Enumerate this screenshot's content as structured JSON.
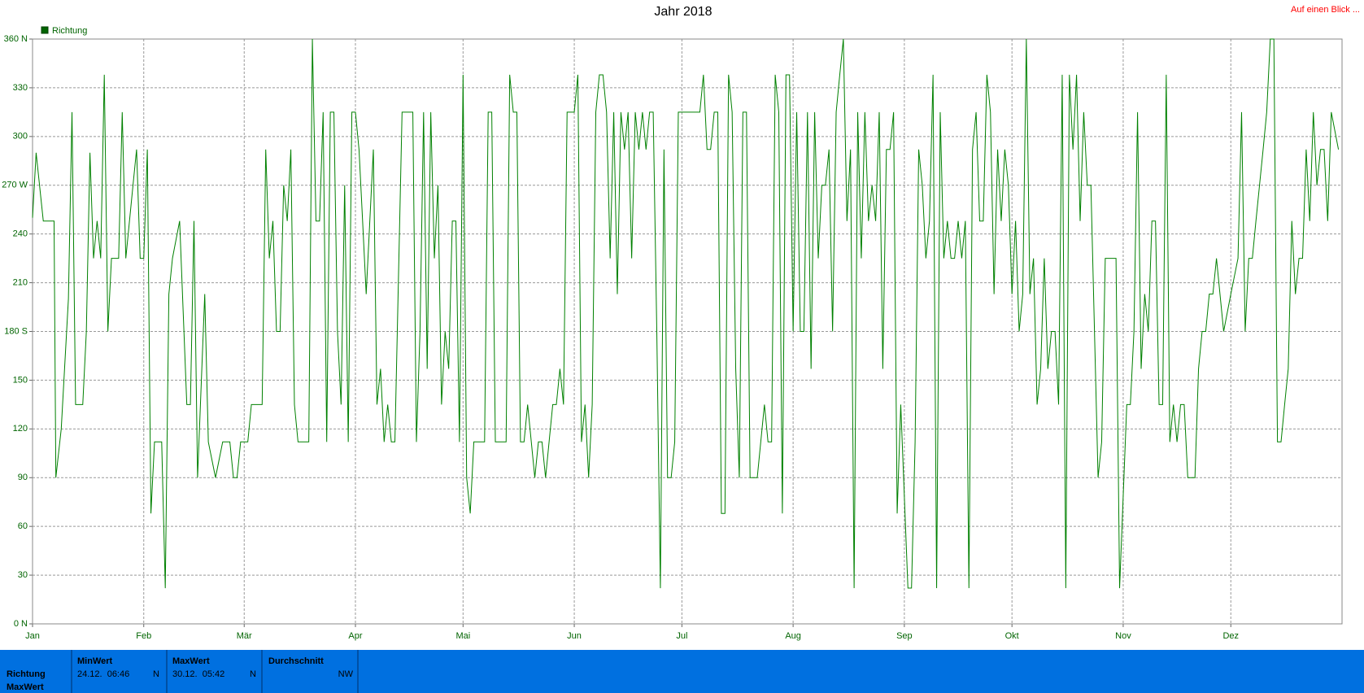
{
  "chart_data": {
    "type": "line",
    "title": "Jahr 2018",
    "link": "Auf einen Blick ...",
    "xlim": [
      0,
      365
    ],
    "xticks": [
      {
        "value": 0,
        "label": "Jan"
      },
      {
        "value": 31,
        "label": "Feb"
      },
      {
        "value": 59,
        "label": "Mär"
      },
      {
        "value": 90,
        "label": "Apr"
      },
      {
        "value": 120,
        "label": "Mai"
      },
      {
        "value": 151,
        "label": "Jun"
      },
      {
        "value": 181,
        "label": "Jul"
      },
      {
        "value": 212,
        "label": "Aug"
      },
      {
        "value": 243,
        "label": "Sep"
      },
      {
        "value": 273,
        "label": "Okt"
      },
      {
        "value": 304,
        "label": "Nov"
      },
      {
        "value": 334,
        "label": "Dez"
      }
    ],
    "ylim": [
      0,
      360
    ],
    "yticks": [
      {
        "value": 0,
        "label": "0 N"
      },
      30,
      60,
      90,
      120,
      150,
      {
        "value": 180,
        "label": "180 S"
      },
      210,
      240,
      {
        "value": 270,
        "label": "270 W"
      },
      300,
      330,
      {
        "value": 360,
        "label": "360 N"
      }
    ],
    "grid": true,
    "x": [
      0,
      1,
      3,
      6,
      6.5,
      8,
      10,
      11,
      12,
      14,
      15,
      16,
      17,
      18,
      19,
      20,
      21,
      22,
      24,
      25,
      26,
      28,
      29,
      30,
      31,
      32,
      33,
      34,
      36,
      37,
      38,
      39,
      41,
      43,
      44,
      45,
      46,
      48,
      49,
      51,
      53,
      55,
      56,
      57,
      58,
      59,
      60,
      61,
      64,
      65,
      66,
      67,
      68,
      69,
      70,
      71,
      72,
      73,
      74,
      77,
      78,
      79,
      80,
      81,
      82,
      83,
      84,
      85,
      86,
      87,
      88,
      89,
      90,
      91,
      92,
      93,
      95,
      96,
      97,
      98,
      99,
      100,
      101,
      103,
      106,
      107,
      108,
      109,
      110,
      111,
      112,
      113,
      114,
      115,
      116,
      117,
      118,
      119,
      120,
      121,
      122,
      123,
      126,
      127,
      128,
      129,
      132,
      133,
      134,
      135,
      136,
      137,
      138,
      140,
      141,
      142,
      143,
      145,
      146,
      147,
      148,
      149,
      150,
      151,
      152,
      153,
      154,
      155,
      156,
      157,
      158,
      159,
      160,
      161,
      162,
      163,
      164,
      165,
      166,
      167,
      168,
      169,
      170,
      171,
      172,
      173,
      174,
      175,
      176,
      177,
      178,
      179,
      180,
      181,
      185,
      186,
      187,
      188,
      189,
      190,
      191,
      192,
      193,
      194,
      195,
      196,
      197,
      198,
      199,
      200,
      201,
      202,
      204,
      205,
      206,
      207,
      208,
      209,
      210,
      211,
      212,
      213,
      214,
      215,
      216,
      217,
      218,
      219,
      220,
      221,
      222,
      223,
      224,
      225,
      226,
      227,
      228,
      229,
      230,
      231,
      232,
      233,
      234,
      235,
      236,
      237,
      238,
      239,
      240,
      241,
      242,
      244,
      245,
      246,
      247,
      248,
      249,
      250,
      251,
      252,
      253,
      254,
      255,
      256,
      257,
      258,
      259,
      260,
      261,
      262,
      263,
      264,
      265,
      266,
      267,
      268,
      269,
      270,
      271,
      272,
      273,
      274,
      275,
      276,
      277,
      278,
      279,
      280,
      281,
      282,
      283,
      284,
      285,
      286,
      287,
      288,
      289,
      290,
      291,
      292,
      293,
      294,
      295,
      296,
      297,
      298,
      299,
      300,
      301,
      302,
      303,
      305,
      306,
      307,
      308,
      309,
      310,
      311,
      312,
      313,
      314,
      315,
      316,
      317,
      318,
      319,
      320,
      321,
      322,
      323,
      324,
      325,
      326,
      327,
      328,
      329,
      330,
      332,
      334,
      336,
      337,
      338,
      339,
      340,
      341,
      342,
      343,
      344,
      345,
      346,
      347,
      348,
      349,
      350,
      351,
      352,
      353,
      354,
      355,
      356,
      357,
      358,
      359,
      360,
      361,
      362,
      364
    ],
    "series": [
      {
        "name": "Richtung",
        "color": "#008000",
        "values": [
          250,
          290,
          248,
          248,
          90,
          120,
          200,
          315,
          135,
          135,
          180,
          290,
          225,
          248,
          225,
          338,
          180,
          225,
          225,
          315,
          225,
          270,
          292,
          225,
          225,
          292,
          68,
          112,
          112,
          22,
          203,
          225,
          248,
          135,
          135,
          248,
          90,
          203,
          112,
          90,
          112,
          112,
          90,
          90,
          112,
          112,
          112,
          135,
          135,
          292,
          225,
          248,
          180,
          180,
          270,
          248,
          292,
          135,
          112,
          112,
          360,
          248,
          248,
          315,
          112,
          315,
          315,
          180,
          135,
          270,
          112,
          315,
          315,
          292,
          248,
          203,
          292,
          135,
          157,
          112,
          135,
          112,
          112,
          315,
          315,
          112,
          180,
          315,
          157,
          315,
          225,
          270,
          135,
          180,
          157,
          248,
          248,
          112,
          338,
          90,
          68,
          112,
          112,
          315,
          315,
          112,
          112,
          338,
          315,
          315,
          112,
          112,
          135,
          90,
          112,
          112,
          90,
          135,
          135,
          157,
          135,
          315,
          315,
          315,
          338,
          112,
          135,
          90,
          135,
          315,
          338,
          338,
          315,
          225,
          315,
          203,
          315,
          292,
          315,
          225,
          315,
          292,
          315,
          292,
          315,
          315,
          180,
          22,
          292,
          90,
          90,
          112,
          315,
          315,
          315,
          315,
          338,
          292,
          292,
          315,
          315,
          68,
          68,
          338,
          315,
          157,
          90,
          315,
          315,
          90,
          90,
          90,
          135,
          112,
          112,
          338,
          315,
          68,
          338,
          338,
          180,
          315,
          180,
          180,
          315,
          157,
          315,
          225,
          270,
          270,
          292,
          180,
          315,
          338,
          360,
          248,
          292,
          22,
          315,
          225,
          315,
          248,
          270,
          248,
          315,
          157,
          292,
          292,
          315,
          68,
          135,
          22,
          22,
          112,
          292,
          270,
          225,
          248,
          338,
          22,
          315,
          225,
          248,
          225,
          225,
          248,
          225,
          248,
          22,
          292,
          315,
          248,
          248,
          338,
          315,
          203,
          292,
          248,
          292,
          270,
          203,
          248,
          180,
          203,
          360,
          203,
          225,
          135,
          157,
          225,
          157,
          180,
          180,
          135,
          338,
          22,
          338,
          292,
          338,
          248,
          315,
          270,
          270,
          180,
          90,
          112,
          225,
          225,
          225,
          225,
          22,
          135,
          135,
          180,
          315,
          157,
          203,
          180,
          248,
          248,
          135,
          135,
          338,
          112,
          135,
          112,
          135,
          135,
          90,
          90,
          90,
          157,
          180,
          180,
          203,
          203,
          225,
          180,
          203,
          225,
          315,
          180,
          225,
          225,
          248,
          270,
          292,
          315,
          360,
          360,
          112,
          112,
          135,
          157,
          248,
          203,
          225,
          225,
          292,
          248,
          315,
          270,
          292,
          292,
          248,
          315,
          292
        ]
      }
    ]
  },
  "summary": {
    "row_labels": [
      "Richtung",
      "MaxWert"
    ],
    "columns": [
      {
        "header": "MinWert",
        "time": "24.12.  06:46",
        "value": "N"
      },
      {
        "header": "MaxWert",
        "time": "30.12.  05:42",
        "value": "N"
      },
      {
        "header": "Durchschnitt",
        "value": "NW"
      }
    ]
  }
}
